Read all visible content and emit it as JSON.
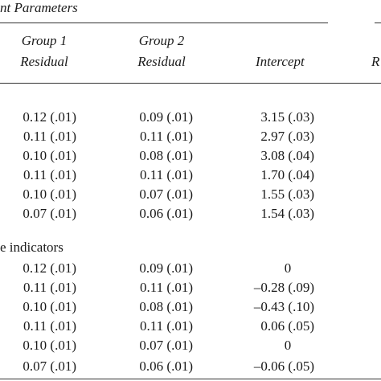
{
  "table": {
    "section_title": "nt Parameters",
    "headers": {
      "group1_line1": "Group 1",
      "group1_line2": "Residual",
      "group2_line1": "Group 2",
      "group2_line2": "Residual",
      "intercept": "Intercept",
      "right_cut_header": "R"
    },
    "section1_rows": [
      {
        "g1": "0.12 (.01)",
        "g2": "0.09 (.01)",
        "int": "3.15 (.03)"
      },
      {
        "g1": "0.11 (.01)",
        "g2": "0.11 (.01)",
        "int": "2.97 (.03)"
      },
      {
        "g1": "0.10 (.01)",
        "g2": "0.08 (.01)",
        "int": "3.08 (.04)"
      },
      {
        "g1": "0.11 (.01)",
        "g2": "0.11 (.01)",
        "int": "1.70 (.04)"
      },
      {
        "g1": "0.10 (.01)",
        "g2": "0.07 (.01)",
        "int": "1.55 (.03)"
      },
      {
        "g1": "0.07 (.01)",
        "g2": "0.06 (.01)",
        "int": "1.54 (.03)"
      }
    ],
    "section2_label": "e indicators",
    "section2_rows": [
      {
        "g1": "0.12 (.01)",
        "g2": "0.09 (.01)",
        "int": "0"
      },
      {
        "g1": "0.11 (.01)",
        "g2": "0.11 (.01)",
        "int": "–0.28 (.09)"
      },
      {
        "g1": "0.10 (.01)",
        "g2": "0.08 (.01)",
        "int": "–0.43 (.10)"
      },
      {
        "g1": "0.11 (.01)",
        "g2": "0.11 (.01)",
        "int": "0.06 (.05)"
      },
      {
        "g1": "0.10 (.01)",
        "g2": "0.07 (.01)",
        "int": "0"
      },
      {
        "g1": "0.07 (.01)",
        "g2": "0.06 (.01)",
        "int": "–0.06 (.05)"
      }
    ]
  }
}
